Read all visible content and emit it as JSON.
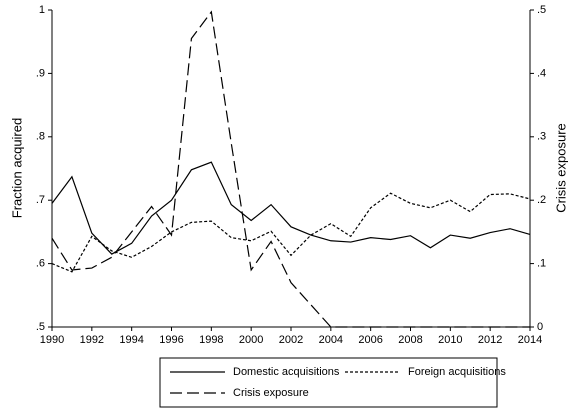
{
  "chart_data": {
    "type": "line",
    "ylabel": "Fraction acquired",
    "y2label": "Crisis exposure",
    "x": [
      1990,
      1991,
      1992,
      1993,
      1994,
      1995,
      1996,
      1997,
      1998,
      1999,
      2000,
      2001,
      2002,
      2003,
      2004,
      2005,
      2006,
      2007,
      2008,
      2009,
      2010,
      2011,
      2012,
      2013,
      2014
    ],
    "xlim": [
      1990,
      2014
    ],
    "xticks": [
      1990,
      1992,
      1994,
      1996,
      1998,
      2000,
      2002,
      2004,
      2006,
      2008,
      2010,
      2012,
      2014
    ],
    "ylim": [
      0.5,
      1
    ],
    "yticks": [
      {
        "value": 0.5,
        "label": ".5"
      },
      {
        "value": 0.6,
        "label": ".6"
      },
      {
        "value": 0.7,
        "label": ".7"
      },
      {
        "value": 0.8,
        "label": ".8"
      },
      {
        "value": 0.9,
        "label": ".9"
      },
      1
    ],
    "y2lim": [
      0,
      0.5
    ],
    "y2ticks": [
      0,
      {
        "value": 0.1,
        "label": ".1"
      },
      {
        "value": 0.2,
        "label": ".2"
      },
      {
        "value": 0.3,
        "label": ".3"
      },
      {
        "value": 0.4,
        "label": ".4"
      },
      {
        "value": 0.5,
        "label": ".5"
      }
    ],
    "series": [
      {
        "name": "Domestic acquisitions",
        "color": "#000000",
        "style": "solid",
        "values": [
          0.695,
          0.737,
          0.648,
          0.615,
          0.632,
          0.675,
          0.7,
          0.748,
          0.76,
          0.693,
          0.668,
          0.693,
          0.658,
          0.645,
          0.636,
          0.634,
          0.641,
          0.638,
          0.644,
          0.625,
          0.645,
          0.64,
          0.649,
          0.655,
          0.646
        ]
      },
      {
        "name": "Foreign acquisitions",
        "color": "#000000",
        "style": "dotted",
        "values": [
          0.6,
          0.587,
          0.643,
          0.62,
          0.61,
          0.627,
          0.65,
          0.665,
          0.667,
          0.641,
          0.636,
          0.651,
          0.613,
          0.645,
          0.663,
          0.643,
          0.688,
          0.711,
          0.695,
          0.688,
          0.7,
          0.682,
          0.709,
          0.71,
          0.702
        ]
      },
      {
        "name": "Crisis exposure",
        "color": "#000000",
        "style": "dashed",
        "axis": "y2",
        "values": [
          0.14,
          0.09,
          0.093,
          0.11,
          0.15,
          0.19,
          0.145,
          0.455,
          0.497,
          0.29,
          0.09,
          0.135,
          0.07,
          0.035,
          0,
          0,
          0,
          0,
          0,
          0,
          0,
          0,
          0,
          0,
          0
        ]
      }
    ]
  }
}
